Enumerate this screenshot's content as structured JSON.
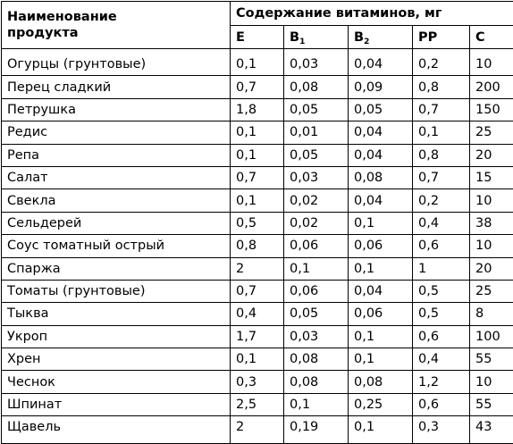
{
  "table": {
    "name_header_line1": "Наименование",
    "name_header_line2": "продукта",
    "group_header": "Содержание витаминов, мг",
    "columns": [
      {
        "base": "E",
        "sub": ""
      },
      {
        "base": "B",
        "sub": "1"
      },
      {
        "base": "B",
        "sub": "2"
      },
      {
        "base": "PP",
        "sub": ""
      },
      {
        "base": "C",
        "sub": ""
      }
    ],
    "rows": [
      {
        "name": "Огурцы (грунтовые)",
        "values": [
          "0,1",
          "0,03",
          "0,04",
          "0,2",
          "10"
        ]
      },
      {
        "name": "Перец сладкий",
        "values": [
          "0,7",
          "0,08",
          "0,09",
          "0,8",
          "200"
        ]
      },
      {
        "name": "Петрушка",
        "values": [
          "1,8",
          "0,05",
          "0,05",
          "0,7",
          "150"
        ]
      },
      {
        "name": "Редис",
        "values": [
          "0,1",
          "0,01",
          "0,04",
          "0,1",
          "25"
        ]
      },
      {
        "name": "Репа",
        "values": [
          "0,1",
          "0,05",
          "0,04",
          "0,8",
          "20"
        ]
      },
      {
        "name": "Салат",
        "values": [
          "0,7",
          "0,03",
          "0,08",
          "0,7",
          "15"
        ]
      },
      {
        "name": "Свекла",
        "values": [
          "0,1",
          "0,02",
          "0,04",
          "0,2",
          "10"
        ]
      },
      {
        "name": "Сельдерей",
        "values": [
          "0,5",
          "0,02",
          "0,1",
          "0,4",
          "38"
        ]
      },
      {
        "name": "Соус томатный острый",
        "values": [
          "0,8",
          "0,06",
          "0,06",
          "0,6",
          "10"
        ]
      },
      {
        "name": "Спаржа",
        "values": [
          "2",
          "0,1",
          "0,1",
          "1",
          "20"
        ]
      },
      {
        "name": "Томаты (грунтовые)",
        "values": [
          "0,7",
          "0,06",
          "0,04",
          "0,5",
          "25"
        ]
      },
      {
        "name": "Тыква",
        "values": [
          "0,4",
          "0,05",
          "0,06",
          "0,5",
          "8"
        ]
      },
      {
        "name": "Укроп",
        "values": [
          "1,7",
          "0,03",
          "0,1",
          "0,6",
          "100"
        ]
      },
      {
        "name": "Хрен",
        "values": [
          "0,1",
          "0,08",
          "0,1",
          "0,4",
          "55"
        ]
      },
      {
        "name": "Чеснок",
        "values": [
          "0,3",
          "0,08",
          "0,08",
          "1,2",
          "10"
        ]
      },
      {
        "name": "Шпинат",
        "values": [
          "2,5",
          "0,1",
          "0,25",
          "0,6",
          "55"
        ]
      },
      {
        "name": "Щавель",
        "values": [
          "2",
          "0,19",
          "0,1",
          "0,3",
          "43"
        ]
      }
    ]
  }
}
